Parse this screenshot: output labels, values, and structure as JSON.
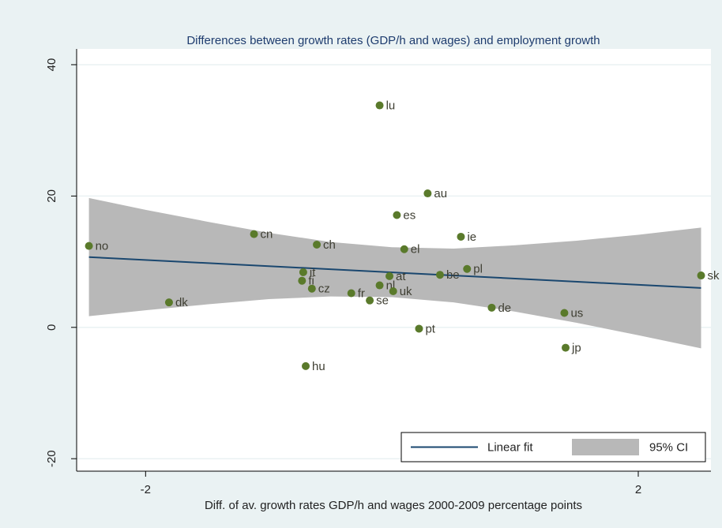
{
  "chart_data": {
    "type": "scatter",
    "title": "Differences between growth rates (GDP/h and wages) and employment growth",
    "x_label": "Diff. of av. growth rates GDP/h and wages 2000-2009 percentage points",
    "xlim": [
      -2.56,
      2.59
    ],
    "ylim": [
      -21.9,
      42.4
    ],
    "xticks": [
      -2,
      2
    ],
    "yticks": [
      40,
      20,
      0,
      -20
    ],
    "grid": true,
    "legend": "bottom-right",
    "points": {
      "color": "#5a7a2b",
      "labels": [
        "no",
        "dk",
        "cn",
        "ch",
        "fi",
        "cz",
        "it",
        "fr",
        "se",
        "nl",
        "lu",
        "uk",
        "es",
        "el",
        "at",
        "au",
        "pt",
        "hu",
        "be",
        "ie",
        "pl",
        "de",
        "us",
        "jp",
        "sk"
      ],
      "x": [
        -2.46,
        -1.81,
        -1.12,
        -0.61,
        -0.73,
        -0.65,
        -0.72,
        -0.33,
        -0.18,
        -0.1,
        -0.1,
        0.01,
        0.04,
        0.1,
        -0.02,
        0.29,
        0.22,
        -0.7,
        0.39,
        0.56,
        0.61,
        0.81,
        1.4,
        1.41,
        2.51
      ],
      "values": [
        12.4,
        3.8,
        14.2,
        12.6,
        7.1,
        5.9,
        8.4,
        5.2,
        4.1,
        6.4,
        33.8,
        5.5,
        17.1,
        11.9,
        7.8,
        20.4,
        -0.2,
        -5.9,
        8.0,
        13.8,
        8.9,
        3.0,
        2.2,
        -3.1,
        7.9
      ]
    },
    "series": [
      {
        "name": "Linear fit",
        "color": "#1a476f",
        "x": [
          -2.46,
          2.51
        ],
        "values": [
          10.7,
          6.0
        ]
      },
      {
        "name": "95% CI",
        "color": "#b8b8b8",
        "x": [
          -2.46,
          -2,
          -1.5,
          -1,
          -0.5,
          0,
          0.5,
          1,
          1.5,
          2,
          2.51
        ],
        "upper": [
          19.7,
          17.9,
          16.1,
          14.4,
          13.0,
          12.2,
          12.0,
          12.5,
          13.2,
          14.1,
          15.2
        ],
        "lower": [
          1.7,
          2.6,
          3.5,
          4.3,
          4.7,
          4.6,
          3.8,
          2.4,
          0.7,
          -1.2,
          -3.2
        ]
      }
    ]
  }
}
